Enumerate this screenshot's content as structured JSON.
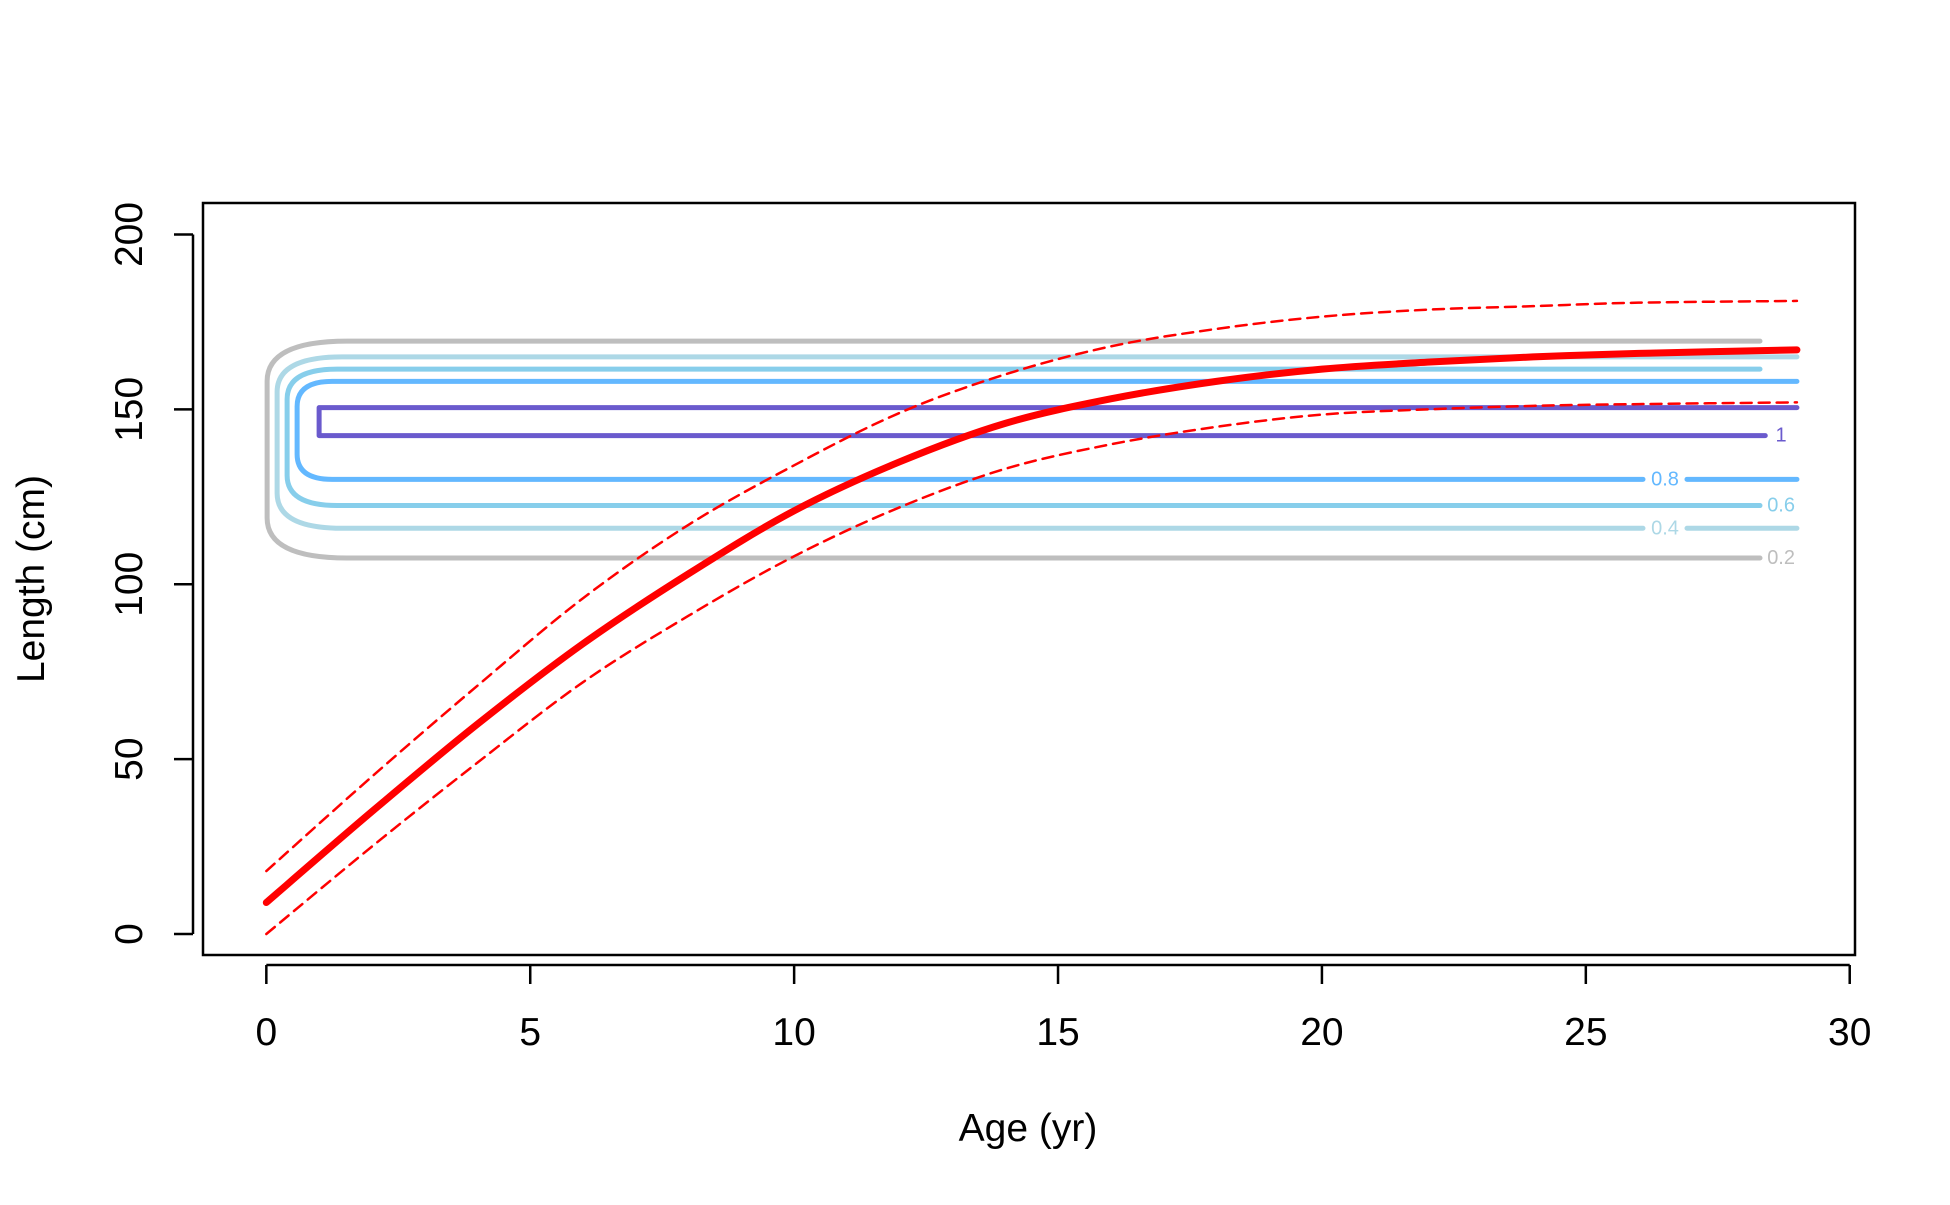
{
  "chart_data": {
    "type": "line",
    "title": "",
    "xlabel": "Age (yr)",
    "ylabel": "Length (cm)",
    "xlim": [
      -1.2,
      30.1
    ],
    "ylim": [
      -6,
      209
    ],
    "xticks": [
      0,
      5,
      10,
      15,
      20,
      25,
      30
    ],
    "xtick_labels": [
      "0",
      "5",
      "10",
      "15",
      "20",
      "25",
      "30"
    ],
    "yticks": [
      0,
      50,
      100,
      150,
      200
    ],
    "ytick_labels": [
      "0",
      "50",
      "100",
      "150",
      "200"
    ],
    "grid": false,
    "legend": "none",
    "series": [
      {
        "role": "mean",
        "color": "#ff0000",
        "style": "solid",
        "x": [
          0,
          2,
          4,
          6,
          8,
          10,
          12,
          14,
          16,
          18,
          20,
          22,
          24,
          26,
          29
        ],
        "values": [
          9,
          35,
          60,
          83,
          103,
          121,
          135,
          146,
          153,
          158,
          161.5,
          163.5,
          165,
          166,
          167
        ]
      },
      {
        "role": "upper",
        "color": "#ff0000",
        "style": "dashed",
        "x": [
          0,
          2,
          4,
          6,
          8,
          10,
          12,
          14,
          16,
          18,
          20,
          22,
          24,
          26,
          29
        ],
        "values": [
          18,
          45,
          71,
          96,
          117,
          134,
          149,
          160,
          168,
          173,
          176.5,
          178.5,
          179.5,
          180.5,
          181
        ]
      },
      {
        "role": "lower",
        "color": "#ff0000",
        "style": "dashed",
        "x": [
          0,
          2,
          4,
          6,
          8,
          10,
          12,
          14,
          16,
          18,
          20,
          22,
          24,
          26,
          29
        ],
        "values": [
          0,
          25,
          49,
          72,
          91,
          108,
          122,
          133,
          140,
          145,
          148.5,
          150,
          151,
          151.5,
          152
        ]
      }
    ],
    "contours": [
      {
        "level": 0.2,
        "label": "0.2",
        "color": "#bebebe",
        "x_left": 1.0,
        "x_right": 28.3,
        "y_low": 107.5,
        "y_high": 169.5,
        "label_x": 28.7,
        "label_y": 107.5,
        "label_on": "low"
      },
      {
        "level": 0.4,
        "label": "0.4",
        "color": "#add8e6",
        "x_left": 1.0,
        "x_right": 29.0,
        "y_low": 116,
        "y_high": 165,
        "label_x": 26.5,
        "label_y": 116,
        "label_on": "low"
      },
      {
        "level": 0.6,
        "label": "0.6",
        "color": "#87ceeb",
        "x_left": 1.0,
        "x_right": 28.3,
        "y_low": 122.5,
        "y_high": 161.5,
        "label_x": 28.7,
        "label_y": 122.5,
        "label_on": "low"
      },
      {
        "level": 0.8,
        "label": "0.8",
        "color": "#63b8ff",
        "x_left": 1.0,
        "x_right": 29.0,
        "y_low": 130,
        "y_high": 158,
        "label_x": 26.5,
        "label_y": 130,
        "label_on": "low"
      },
      {
        "level": 1,
        "label": "1",
        "color": "#6a5acd",
        "x_left": 1.0,
        "x_right": 28.4,
        "y_low": 142.5,
        "y_high": 150.5,
        "label_x": 28.7,
        "label_y": 142.5,
        "label_on": "low",
        "top_x_right": 29.0
      }
    ]
  }
}
